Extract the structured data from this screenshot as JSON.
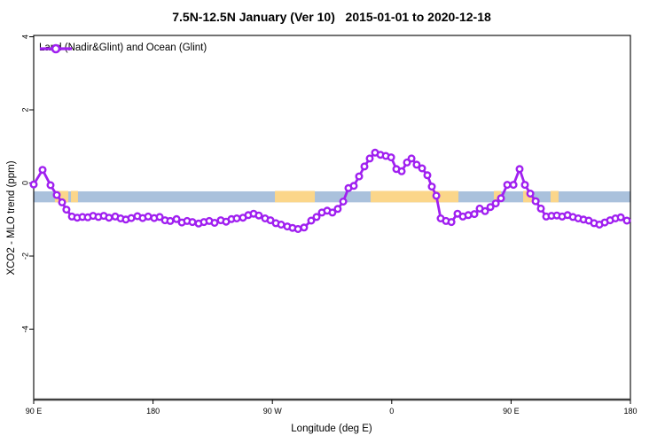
{
  "title": "7.5N-12.5N January (Ver 10)   2015-01-01 to 2020-12-18",
  "legend": {
    "label": "Land (Nadir&Glint) and Ocean (Glint)"
  },
  "axes": {
    "x": {
      "label": "Longitude (deg E)",
      "tick_labels": [
        "90 E",
        "180",
        "90 W",
        "0",
        "90 E",
        "180"
      ],
      "tick_offsets_deg": [
        0,
        90,
        180,
        270,
        360,
        450
      ],
      "span_deg": 450,
      "note": "longitude wraps eastward from 90E around the globe to 180"
    },
    "y": {
      "label": "XCO2 - MLO trend (ppm)",
      "tick_values": [
        4,
        2,
        0,
        -2,
        -4
      ],
      "tick_labels": [
        "4",
        "2",
        "0",
        "-2",
        "-4"
      ],
      "range_ppm": [
        -5.93,
        4.04
      ]
    }
  },
  "colors": {
    "series": "#a020f0",
    "marker_fill": "#ffffff",
    "ocean_band": "#aac1dc",
    "land_band": "#fbd68a",
    "plot_border": "#000000",
    "bottom_axis": "#404040"
  },
  "chart_data": {
    "type": "line",
    "title": "7.5N-12.5N January (Ver 10)   2015-01-01 to 2020-12-18",
    "xlabel": "Longitude (deg E)",
    "ylabel": "XCO2 - MLO trend (ppm)",
    "legend_position": "top-left",
    "grid": false,
    "x_unit": "deg east of 90E (wrapped axis, 0..450)",
    "series": [
      {
        "name": "Land (Nadir&Glint) and Ocean (Glint)",
        "color": "#a020f0",
        "marker": "open-circle",
        "points": [
          [
            0,
            -0.04
          ],
          [
            6.7,
            0.36
          ],
          [
            12.7,
            -0.06
          ],
          [
            17.4,
            -0.33
          ],
          [
            21.4,
            -0.53
          ],
          [
            24.7,
            -0.73
          ],
          [
            28.8,
            -0.92
          ],
          [
            32.8,
            -0.95
          ],
          [
            36.8,
            -0.93
          ],
          [
            40.8,
            -0.94
          ],
          [
            44.8,
            -0.9
          ],
          [
            48.8,
            -0.93
          ],
          [
            52.8,
            -0.9
          ],
          [
            56.8,
            -0.95
          ],
          [
            61.5,
            -0.92
          ],
          [
            65.5,
            -0.97
          ],
          [
            69.5,
            -1.0
          ],
          [
            73.6,
            -0.96
          ],
          [
            78.2,
            -0.91
          ],
          [
            82.2,
            -0.96
          ],
          [
            86.3,
            -0.92
          ],
          [
            90.9,
            -0.96
          ],
          [
            95.0,
            -0.93
          ],
          [
            99.0,
            -1.02
          ],
          [
            103.0,
            -1.04
          ],
          [
            107.7,
            -0.99
          ],
          [
            111.7,
            -1.08
          ],
          [
            115.7,
            -1.04
          ],
          [
            119.7,
            -1.07
          ],
          [
            124.4,
            -1.11
          ],
          [
            128.4,
            -1.07
          ],
          [
            132.4,
            -1.04
          ],
          [
            136.4,
            -1.09
          ],
          [
            141.1,
            -1.02
          ],
          [
            145.1,
            -1.06
          ],
          [
            149.1,
            -0.99
          ],
          [
            153.1,
            -0.97
          ],
          [
            157.8,
            -0.95
          ],
          [
            161.8,
            -0.88
          ],
          [
            165.8,
            -0.84
          ],
          [
            169.8,
            -0.89
          ],
          [
            174.5,
            -0.97
          ],
          [
            178.5,
            -1.02
          ],
          [
            182.6,
            -1.1
          ],
          [
            186.6,
            -1.14
          ],
          [
            191.2,
            -1.19
          ],
          [
            195.2,
            -1.23
          ],
          [
            199.3,
            -1.26
          ],
          [
            203.9,
            -1.22
          ],
          [
            209.3,
            -1.03
          ],
          [
            213.3,
            -0.93
          ],
          [
            217.3,
            -0.81
          ],
          [
            221.3,
            -0.76
          ],
          [
            225.3,
            -0.81
          ],
          [
            229.3,
            -0.71
          ],
          [
            233.4,
            -0.51
          ],
          [
            237.4,
            -0.14
          ],
          [
            241.4,
            -0.08
          ],
          [
            245.4,
            0.18
          ],
          [
            249.4,
            0.45
          ],
          [
            253.4,
            0.67
          ],
          [
            257.4,
            0.83
          ],
          [
            261.5,
            0.77
          ],
          [
            265.5,
            0.74
          ],
          [
            269.5,
            0.7
          ],
          [
            273.5,
            0.38
          ],
          [
            277.5,
            0.32
          ],
          [
            281.5,
            0.56
          ],
          [
            284.9,
            0.67
          ],
          [
            288.8,
            0.5
          ],
          [
            292.9,
            0.4
          ],
          [
            296.9,
            0.21
          ],
          [
            300.2,
            -0.1
          ],
          [
            303.6,
            -0.35
          ],
          [
            306.9,
            -0.97
          ],
          [
            310.9,
            -1.04
          ],
          [
            315.0,
            -1.07
          ],
          [
            319.6,
            -0.84
          ],
          [
            323.6,
            -0.92
          ],
          [
            327.7,
            -0.88
          ],
          [
            332.3,
            -0.85
          ],
          [
            336.3,
            -0.7
          ],
          [
            340.4,
            -0.77
          ],
          [
            344.4,
            -0.66
          ],
          [
            348.4,
            -0.56
          ],
          [
            352.4,
            -0.42
          ],
          [
            357.1,
            -0.05
          ],
          [
            361.8,
            -0.05
          ],
          [
            366.4,
            0.38
          ],
          [
            370.4,
            -0.05
          ],
          [
            374.5,
            -0.29
          ],
          [
            378.5,
            -0.5
          ],
          [
            382.5,
            -0.7
          ],
          [
            386.5,
            -0.92
          ],
          [
            390.5,
            -0.9
          ],
          [
            394.5,
            -0.89
          ],
          [
            398.5,
            -0.92
          ],
          [
            402.6,
            -0.88
          ],
          [
            406.6,
            -0.93
          ],
          [
            410.6,
            -0.97
          ],
          [
            414.6,
            -1.0
          ],
          [
            418.6,
            -1.03
          ],
          [
            422.6,
            -1.1
          ],
          [
            426.6,
            -1.14
          ],
          [
            430.6,
            -1.08
          ],
          [
            434.7,
            -1.02
          ],
          [
            438.7,
            -0.97
          ],
          [
            442.7,
            -0.94
          ],
          [
            447.3,
            -1.03
          ]
        ]
      }
    ],
    "reference_band": {
      "description": "horizontal strip: blue = ocean, orange = land along latitude band",
      "y_from_ppm": -0.23,
      "y_to_ppm": -0.53,
      "ocean_color": "#aac1dc",
      "land_color": "#fbd68a",
      "land_segments_deg": [
        [
          16.0,
          26.1
        ],
        [
          28.1,
          33.4
        ],
        [
          181.9,
          212.0
        ],
        [
          254.1,
          320.3
        ],
        [
          347.0,
          352.4
        ],
        [
          369.1,
          375.8
        ],
        [
          389.8,
          395.8
        ]
      ]
    }
  }
}
